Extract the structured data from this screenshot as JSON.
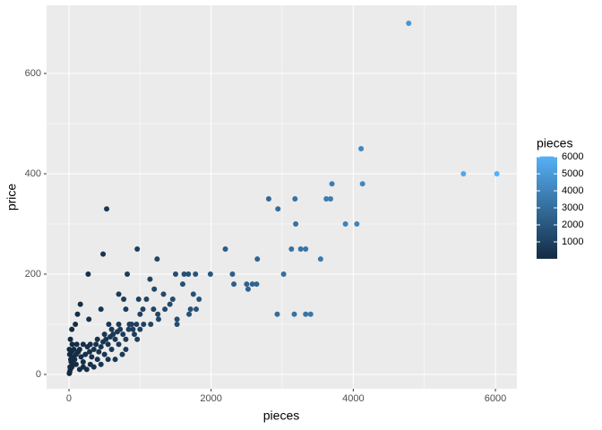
{
  "chart_data": {
    "type": "scatter",
    "x_label": "pieces",
    "y_label": "price",
    "legend_title": "pieces",
    "color_low": "#132B43",
    "color_high": "#56B1F7",
    "panel_color": "#EBEBEB",
    "grid": true,
    "xlim": [
      -315,
      6302
    ],
    "ylim": [
      -28.6,
      735.7
    ],
    "xticks": [
      0,
      2000,
      4000,
      6000
    ],
    "yticks": [
      0,
      200,
      400,
      600
    ],
    "legend_ticks": [
      1000,
      2000,
      3000,
      4000,
      5000,
      6000
    ],
    "x": [
      4780,
      5550,
      6020,
      4110,
      3700,
      4130,
      2810,
      3180,
      3620,
      3680,
      2940,
      3190,
      3890,
      4050,
      530,
      480,
      960,
      2200,
      3130,
      3260,
      3330,
      2650,
      3540,
      1240,
      2300,
      3020,
      1500,
      1680,
      1780,
      1990,
      820,
      270,
      2320,
      2500,
      2520,
      2580,
      2640,
      2930,
      3170,
      3330,
      3400,
      1710,
      1790,
      1520,
      1520,
      1140,
      1200,
      1330,
      1420,
      1460,
      1600,
      1620,
      1750,
      1830,
      1090,
      980,
      700,
      770,
      1040,
      1190,
      1250,
      1260,
      1350,
      1690,
      1000,
      800,
      450,
      280,
      160,
      120,
      90,
      40,
      20,
      850,
      950,
      1050,
      1150,
      700,
      600,
      560,
      500,
      400,
      300,
      200,
      150,
      100,
      80,
      60,
      40,
      20,
      10,
      30,
      50,
      70,
      110,
      130,
      170,
      200,
      230,
      260,
      290,
      320,
      350,
      380,
      420,
      450,
      480,
      520,
      550,
      580,
      620,
      650,
      680,
      720,
      760,
      800,
      840,
      880,
      920,
      960,
      200,
      150,
      100,
      300,
      400,
      500,
      600,
      700,
      800,
      900,
      1000,
      750,
      650,
      550,
      450,
      350,
      250,
      5,
      15,
      25,
      35,
      45,
      10,
      5
    ],
    "y": [
      700,
      400,
      400,
      450,
      380,
      380,
      350,
      350,
      350,
      350,
      330,
      300,
      300,
      300,
      330,
      240,
      250,
      250,
      250,
      250,
      250,
      230,
      230,
      230,
      200,
      200,
      200,
      200,
      200,
      200,
      200,
      200,
      180,
      180,
      170,
      180,
      180,
      120,
      120,
      120,
      120,
      130,
      130,
      110,
      100,
      190,
      170,
      160,
      140,
      150,
      180,
      200,
      160,
      150,
      150,
      150,
      160,
      150,
      130,
      130,
      120,
      110,
      130,
      120,
      120,
      130,
      130,
      110,
      140,
      120,
      100,
      90,
      70,
      100,
      100,
      100,
      100,
      100,
      90,
      100,
      80,
      70,
      60,
      60,
      50,
      40,
      30,
      20,
      15,
      10,
      5,
      25,
      35,
      50,
      60,
      45,
      35,
      25,
      40,
      55,
      45,
      35,
      50,
      60,
      45,
      55,
      65,
      70,
      60,
      75,
      80,
      70,
      85,
      90,
      80,
      70,
      90,
      100,
      80,
      70,
      15,
      10,
      20,
      20,
      30,
      40,
      50,
      60,
      50,
      90,
      90,
      40,
      30,
      30,
      20,
      15,
      10,
      2,
      15,
      30,
      45,
      60,
      40,
      50
    ]
  }
}
